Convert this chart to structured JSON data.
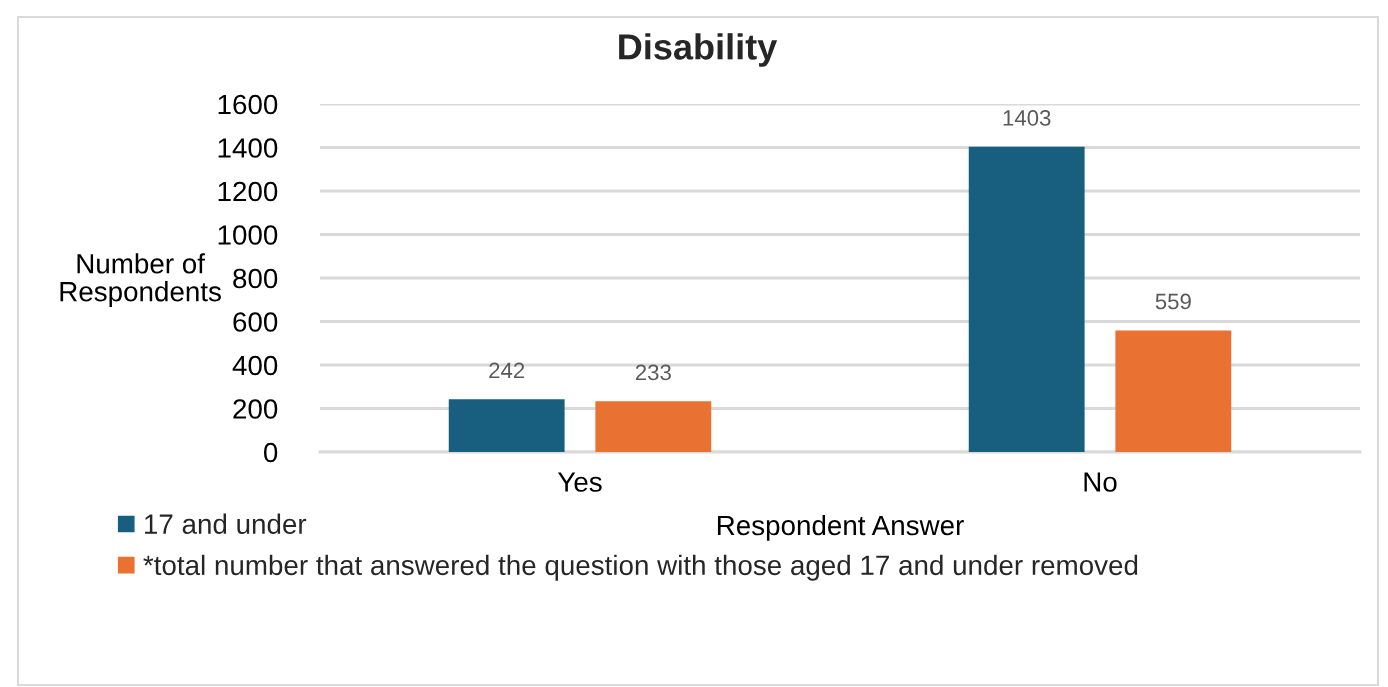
{
  "chart_data": {
    "type": "bar",
    "title": "Disability",
    "xlabel": "Respondent Answer",
    "ylabel": "Number of Respondents",
    "categories": [
      "Yes",
      "No"
    ],
    "series": [
      {
        "name": "17 and under",
        "color": "#175e7f",
        "values": [
          242,
          1403
        ]
      },
      {
        "name": "*total number that answered the question with those aged 17 and under removed",
        "color": "#e97132",
        "values": [
          233,
          559
        ]
      }
    ],
    "ylim": [
      0,
      1600
    ],
    "yticks": [
      0,
      200,
      400,
      600,
      800,
      1000,
      1200,
      1400,
      1600
    ],
    "grid": "y",
    "legend": "bottom left",
    "data_labels": true
  }
}
